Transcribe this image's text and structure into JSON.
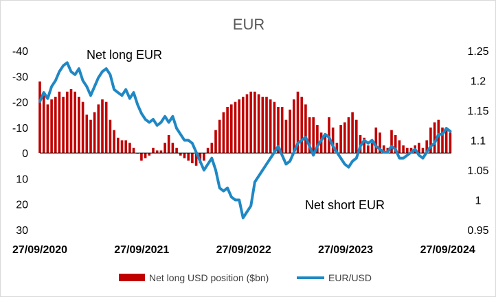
{
  "chart_data": {
    "type": "bar+line",
    "title": "EUR",
    "x_ticks": [
      "27/09/2020",
      "27/09/2021",
      "27/09/2022",
      "27/09/2023",
      "27/09/2024"
    ],
    "x_range": [
      "2020-09-27",
      "2024-10-10"
    ],
    "left_axis": {
      "label": "",
      "ticks": [
        "-40",
        "-30",
        "-20",
        "-10",
        "0",
        "10",
        "20",
        "30"
      ],
      "range": [
        -40,
        30
      ],
      "inverted": true
    },
    "right_axis": {
      "label": "",
      "ticks": [
        "1.25",
        "1.2",
        "1.15",
        "1.1",
        "1.05",
        "1",
        "0.95"
      ],
      "range": [
        0.95,
        1.25
      ]
    },
    "annotations": [
      "Net long EUR",
      "Net short EUR"
    ],
    "legend_position": "bottom",
    "grid": false,
    "series": [
      {
        "name": "Net long USD position ($bn)",
        "type": "bar",
        "axis": "left",
        "color": "#c00000",
        "x": [
          "2020-09-27",
          "2020-10-11",
          "2020-10-25",
          "2020-11-08",
          "2020-11-22",
          "2020-12-06",
          "2020-12-20",
          "2021-01-03",
          "2021-01-17",
          "2021-01-31",
          "2021-02-14",
          "2021-02-28",
          "2021-03-14",
          "2021-03-28",
          "2021-04-11",
          "2021-04-25",
          "2021-05-09",
          "2021-05-23",
          "2021-06-06",
          "2021-06-20",
          "2021-07-04",
          "2021-07-18",
          "2021-08-01",
          "2021-08-15",
          "2021-08-29",
          "2021-09-12",
          "2021-09-26",
          "2021-10-10",
          "2021-10-24",
          "2021-11-07",
          "2021-11-21",
          "2021-12-05",
          "2021-12-19",
          "2022-01-02",
          "2022-01-16",
          "2022-01-30",
          "2022-02-13",
          "2022-02-27",
          "2022-03-13",
          "2022-03-27",
          "2022-04-10",
          "2022-04-24",
          "2022-05-08",
          "2022-05-22",
          "2022-06-05",
          "2022-06-19",
          "2022-07-03",
          "2022-07-17",
          "2022-07-31",
          "2022-08-14",
          "2022-08-28",
          "2022-09-11",
          "2022-09-25",
          "2022-10-09",
          "2022-10-23",
          "2022-11-06",
          "2022-11-20",
          "2022-12-04",
          "2022-12-18",
          "2023-01-01",
          "2023-01-15",
          "2023-01-29",
          "2023-02-12",
          "2023-02-26",
          "2023-03-12",
          "2023-03-26",
          "2023-04-09",
          "2023-04-23",
          "2023-05-07",
          "2023-05-21",
          "2023-06-04",
          "2023-06-18",
          "2023-07-02",
          "2023-07-16",
          "2023-07-30",
          "2023-08-13",
          "2023-08-27",
          "2023-09-10",
          "2023-09-24",
          "2023-10-08",
          "2023-10-22",
          "2023-11-05",
          "2023-11-19",
          "2023-12-03",
          "2023-12-17",
          "2023-12-31",
          "2024-01-14",
          "2024-01-28",
          "2024-02-11",
          "2024-02-25",
          "2024-03-10",
          "2024-03-24",
          "2024-04-07",
          "2024-04-21",
          "2024-05-05",
          "2024-05-19",
          "2024-06-02",
          "2024-06-16",
          "2024-06-30",
          "2024-07-14",
          "2024-07-28",
          "2024-08-11",
          "2024-08-25",
          "2024-09-08",
          "2024-09-22",
          "2024-10-06"
        ],
        "values": [
          -28,
          -24,
          -19,
          -21,
          -22,
          -24,
          -22,
          -24,
          -25,
          -24,
          -22,
          -20,
          -15,
          -13,
          -16,
          -19,
          -21,
          -20,
          -13,
          -9,
          -6,
          -5,
          -5,
          -4,
          -2,
          0,
          3,
          2,
          1,
          -2,
          -1,
          -1,
          -4,
          -7,
          -4,
          -2,
          1,
          2,
          3,
          4,
          5,
          4,
          3,
          -2,
          -4,
          -9,
          -13,
          -16,
          -18,
          -19,
          -20,
          -21,
          -22,
          -23,
          -24,
          -24,
          -23,
          -22,
          -22,
          -21,
          -20,
          -18,
          -18,
          -13,
          -17,
          -21,
          -24,
          -22,
          -19,
          -14,
          -14,
          -11,
          -8,
          -7,
          -14,
          -10,
          -4,
          -11,
          -12,
          -14,
          -16,
          -13,
          -7,
          -6,
          -3,
          -4,
          -10,
          -8,
          -3,
          -2,
          -9,
          -7,
          -5,
          -3,
          -2,
          -2,
          -3,
          -4,
          -2,
          -5,
          -10,
          -12,
          -13,
          -10,
          -10,
          -8
        ]
      },
      {
        "name": "EUR/USD",
        "type": "line",
        "axis": "right",
        "color": "#1f88c4",
        "x": [
          "2020-09-27",
          "2020-10-11",
          "2020-10-25",
          "2020-11-08",
          "2020-11-22",
          "2020-12-06",
          "2020-12-20",
          "2021-01-03",
          "2021-01-17",
          "2021-01-31",
          "2021-02-14",
          "2021-02-28",
          "2021-03-14",
          "2021-03-28",
          "2021-04-11",
          "2021-04-25",
          "2021-05-09",
          "2021-05-23",
          "2021-06-06",
          "2021-06-20",
          "2021-07-04",
          "2021-07-18",
          "2021-08-01",
          "2021-08-15",
          "2021-08-29",
          "2021-09-12",
          "2021-09-26",
          "2021-10-10",
          "2021-10-24",
          "2021-11-07",
          "2021-11-21",
          "2021-12-05",
          "2021-12-19",
          "2022-01-02",
          "2022-01-16",
          "2022-01-30",
          "2022-02-13",
          "2022-02-27",
          "2022-03-13",
          "2022-03-27",
          "2022-04-10",
          "2022-04-24",
          "2022-05-08",
          "2022-05-22",
          "2022-06-05",
          "2022-06-19",
          "2022-07-03",
          "2022-07-17",
          "2022-07-31",
          "2022-08-14",
          "2022-08-28",
          "2022-09-11",
          "2022-09-25",
          "2022-10-09",
          "2022-10-23",
          "2022-11-06",
          "2022-11-20",
          "2022-12-04",
          "2022-12-18",
          "2023-01-01",
          "2023-01-15",
          "2023-01-29",
          "2023-02-12",
          "2023-02-26",
          "2023-03-12",
          "2023-03-26",
          "2023-04-09",
          "2023-04-23",
          "2023-05-07",
          "2023-05-21",
          "2023-06-04",
          "2023-06-18",
          "2023-07-02",
          "2023-07-16",
          "2023-07-30",
          "2023-08-13",
          "2023-08-27",
          "2023-09-10",
          "2023-09-24",
          "2023-10-08",
          "2023-10-22",
          "2023-11-05",
          "2023-11-19",
          "2023-12-03",
          "2023-12-17",
          "2023-12-31",
          "2024-01-14",
          "2024-01-28",
          "2024-02-11",
          "2024-02-25",
          "2024-03-10",
          "2024-03-24",
          "2024-04-07",
          "2024-04-21",
          "2024-05-05",
          "2024-05-19",
          "2024-06-02",
          "2024-06-16",
          "2024-06-30",
          "2024-07-14",
          "2024-07-28",
          "2024-08-11",
          "2024-08-25",
          "2024-09-08",
          "2024-09-22",
          "2024-10-06"
        ],
        "values": [
          1.165,
          1.18,
          1.17,
          1.19,
          1.2,
          1.215,
          1.225,
          1.23,
          1.215,
          1.21,
          1.22,
          1.2,
          1.19,
          1.175,
          1.19,
          1.205,
          1.215,
          1.22,
          1.21,
          1.185,
          1.18,
          1.175,
          1.185,
          1.17,
          1.18,
          1.16,
          1.145,
          1.135,
          1.13,
          1.135,
          1.125,
          1.13,
          1.14,
          1.13,
          1.14,
          1.12,
          1.11,
          1.1,
          1.1,
          1.095,
          1.08,
          1.065,
          1.05,
          1.06,
          1.07,
          1.05,
          1.02,
          1.015,
          1.02,
          1.005,
          1.0,
          1.0,
          0.97,
          0.98,
          0.99,
          1.03,
          1.04,
          1.05,
          1.06,
          1.07,
          1.08,
          1.09,
          1.075,
          1.06,
          1.065,
          1.08,
          1.095,
          1.1,
          1.105,
          1.09,
          1.075,
          1.09,
          1.1,
          1.11,
          1.105,
          1.09,
          1.08,
          1.07,
          1.06,
          1.055,
          1.065,
          1.07,
          1.09,
          1.1,
          1.095,
          1.1,
          1.09,
          1.085,
          1.08,
          1.08,
          1.09,
          1.085,
          1.07,
          1.07,
          1.075,
          1.08,
          1.085,
          1.075,
          1.07,
          1.08,
          1.09,
          1.095,
          1.11,
          1.11,
          1.12,
          1.115
        ]
      }
    ]
  }
}
